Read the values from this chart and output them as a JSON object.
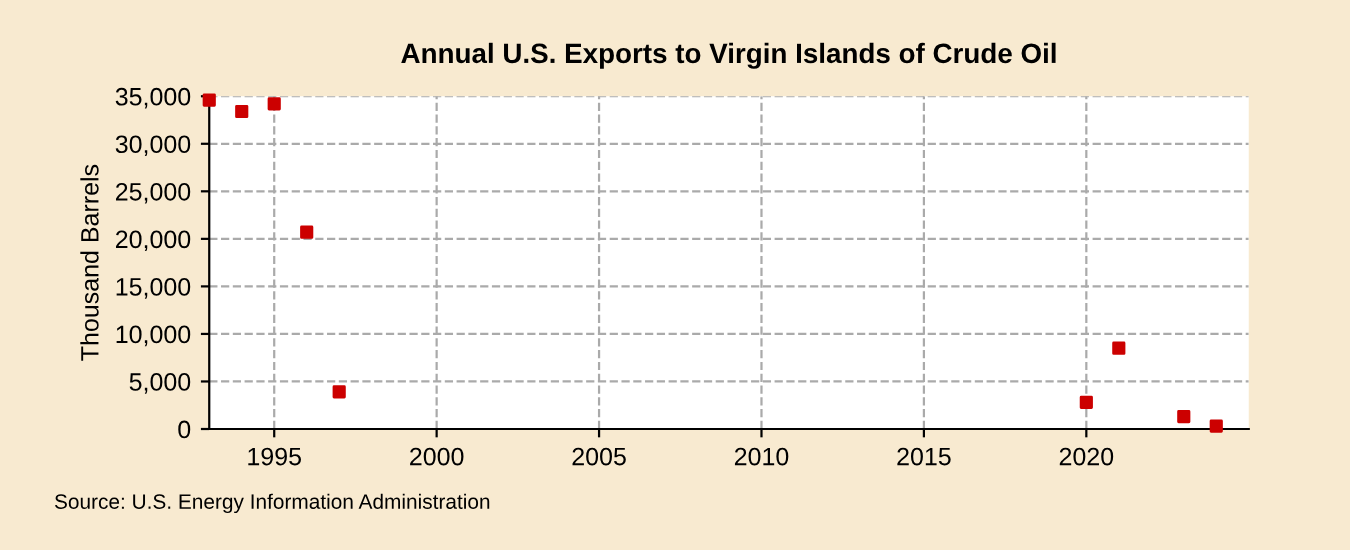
{
  "chart_data": {
    "type": "scatter",
    "title": "Annual U.S. Exports to Virgin Islands of Crude Oil",
    "ylabel": "Thousand Barrels",
    "x": [
      1993,
      1994,
      1995,
      1996,
      1997,
      2020,
      2021,
      2023,
      2024
    ],
    "series": [
      {
        "color": "#cc0000",
        "values": [
          34600,
          33400,
          34200,
          20700,
          3900,
          2800,
          8500,
          1300,
          300
        ]
      }
    ],
    "xlim": [
      1993,
      2025
    ],
    "xticks": [
      1995,
      2000,
      2005,
      2010,
      2015,
      2020
    ],
    "ylim": [
      0,
      35000
    ],
    "yticks": [
      {
        "value": 0,
        "label": "0"
      },
      {
        "value": 5000,
        "label": "5,000"
      },
      {
        "value": 10000,
        "label": "10,000"
      },
      {
        "value": 15000,
        "label": "15,000"
      },
      {
        "value": 20000,
        "label": "20,000"
      },
      {
        "value": 25000,
        "label": "25,000"
      },
      {
        "value": 30000,
        "label": "30,000"
      },
      {
        "value": 35000,
        "label": "35,000"
      }
    ],
    "grid": true,
    "marker": "square",
    "annotations": [
      "Source: U.S. Energy Information Administration"
    ]
  }
}
